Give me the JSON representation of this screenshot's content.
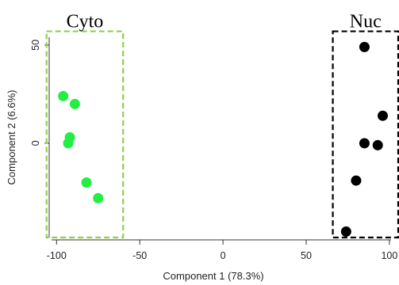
{
  "chart_data": {
    "type": "scatter",
    "title": "",
    "xlabel": "Component 1 (78.3%)",
    "ylabel": "Component 2 (6.6%)",
    "xlim": [
      -103,
      101
    ],
    "ylim": [
      -48,
      54
    ],
    "x_ticks": [
      -100,
      -50,
      0,
      50,
      100
    ],
    "x_tick_labels": [
      "-100",
      "-50",
      "0",
      "50",
      "100"
    ],
    "y_ticks": [
      50,
      0
    ],
    "y_tick_labels": [
      "50",
      "0"
    ],
    "grid": false,
    "series": [
      {
        "name": "Cyto",
        "color": "#22ee44",
        "points": [
          {
            "x": -96,
            "y": 24
          },
          {
            "x": -89,
            "y": 20
          },
          {
            "x": -92,
            "y": 3
          },
          {
            "x": -93,
            "y": 0
          },
          {
            "x": -82,
            "y": -20
          },
          {
            "x": -75,
            "y": -28
          }
        ]
      },
      {
        "name": "Nuc",
        "color": "#000000",
        "points": [
          {
            "x": 85,
            "y": 49
          },
          {
            "x": 96,
            "y": 14
          },
          {
            "x": 85,
            "y": 0
          },
          {
            "x": 93,
            "y": -1
          },
          {
            "x": 80,
            "y": -19
          },
          {
            "x": 74,
            "y": -45
          }
        ]
      }
    ],
    "group_boxes": [
      {
        "name": "Cyto",
        "color": "#8fcf4a",
        "x_range": [
          -106,
          -60
        ],
        "y_range": [
          -48,
          57
        ]
      },
      {
        "name": "Nuc",
        "color": "#000000",
        "x_range": [
          66,
          112
        ],
        "y_range": [
          -48,
          57
        ]
      }
    ]
  }
}
